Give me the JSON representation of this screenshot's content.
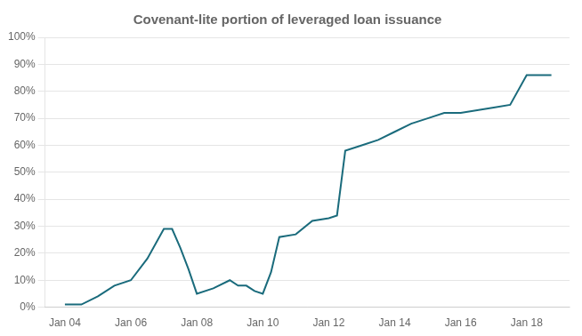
{
  "chart_data": {
    "type": "line",
    "title": "Covenant-lite portion of leveraged loan issuance",
    "x": [
      2004.0,
      2004.5,
      2005.0,
      2005.5,
      2006.0,
      2006.5,
      2007.0,
      2007.25,
      2007.5,
      2007.75,
      2008.0,
      2008.5,
      2009.0,
      2009.25,
      2009.5,
      2009.75,
      2010.0,
      2010.25,
      2010.5,
      2011.0,
      2011.5,
      2012.0,
      2012.25,
      2012.5,
      2013.0,
      2013.5,
      2014.0,
      2014.5,
      2015.0,
      2015.5,
      2016.0,
      2016.5,
      2017.0,
      2017.5,
      2018.0,
      2018.5,
      2018.75
    ],
    "values": [
      0.01,
      0.01,
      0.04,
      0.08,
      0.1,
      0.18,
      0.29,
      0.29,
      0.22,
      0.14,
      0.05,
      0.07,
      0.1,
      0.08,
      0.08,
      0.06,
      0.05,
      0.13,
      0.26,
      0.27,
      0.32,
      0.33,
      0.34,
      0.58,
      0.6,
      0.62,
      0.65,
      0.68,
      0.7,
      0.72,
      0.72,
      0.73,
      0.74,
      0.75,
      0.86,
      0.86,
      0.86
    ],
    "color": "#1a6b7c",
    "xlim": [
      2003.4,
      2019.3
    ],
    "xticks": [
      {
        "value": 2004,
        "label": "Jan 04"
      },
      {
        "value": 2006,
        "label": "Jan 06"
      },
      {
        "value": 2008,
        "label": "Jan 08"
      },
      {
        "value": 2010,
        "label": "Jan 10"
      },
      {
        "value": 2012,
        "label": "Jan 12"
      },
      {
        "value": 2014,
        "label": "Jan 14"
      },
      {
        "value": 2016,
        "label": "Jan 16"
      },
      {
        "value": 2018,
        "label": "Jan 18"
      }
    ],
    "ylim": [
      0,
      1.0
    ],
    "yticks": [
      {
        "value": 0.0,
        "label": "0%"
      },
      {
        "value": 0.1,
        "label": "10%"
      },
      {
        "value": 0.2,
        "label": "20%"
      },
      {
        "value": 0.3,
        "label": "30%"
      },
      {
        "value": 0.4,
        "label": "40%"
      },
      {
        "value": 0.5,
        "label": "50%"
      },
      {
        "value": 0.6,
        "label": "60%"
      },
      {
        "value": 0.7,
        "label": "70%"
      },
      {
        "value": 0.8,
        "label": "80%"
      },
      {
        "value": 0.9,
        "label": "90%"
      },
      {
        "value": 1.0,
        "label": "100%"
      }
    ],
    "grid": "y"
  }
}
